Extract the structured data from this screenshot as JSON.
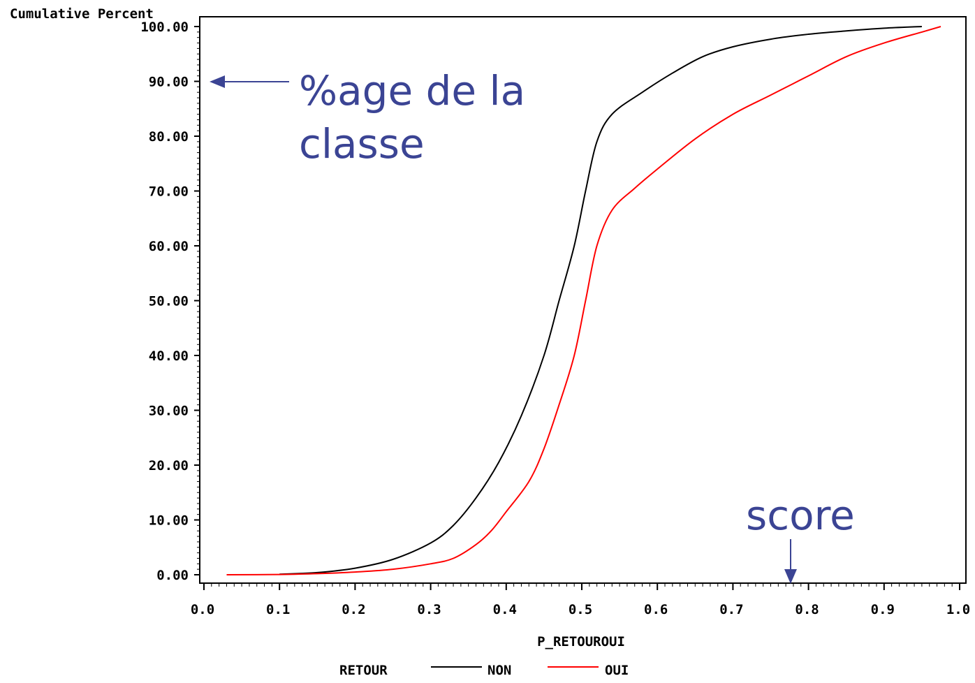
{
  "chart_data": {
    "type": "line",
    "title": "",
    "ylabel": "Cumulative Percent",
    "xlabel": "P_RETOUROUI",
    "xlim": [
      0.0,
      1.0
    ],
    "ylim": [
      0.0,
      100.0
    ],
    "x_ticks": [
      "0.0",
      "0.1",
      "0.2",
      "0.3",
      "0.4",
      "0.5",
      "0.6",
      "0.7",
      "0.8",
      "0.9",
      "1.0"
    ],
    "y_ticks": [
      "0.00",
      "10.00",
      "20.00",
      "30.00",
      "40.00",
      "50.00",
      "60.00",
      "70.00",
      "80.00",
      "90.00",
      "100.00"
    ],
    "grid": false,
    "legend": {
      "title": "RETOUR",
      "placement": "bottom"
    },
    "series": [
      {
        "name": "NON",
        "color": "#000000",
        "points": [
          [
            0.1,
            0.1
          ],
          [
            0.15,
            0.4
          ],
          [
            0.2,
            1.2
          ],
          [
            0.25,
            2.8
          ],
          [
            0.3,
            5.8
          ],
          [
            0.33,
            9.0
          ],
          [
            0.36,
            14.0
          ],
          [
            0.39,
            20.5
          ],
          [
            0.42,
            29.0
          ],
          [
            0.45,
            40.0
          ],
          [
            0.47,
            50.0
          ],
          [
            0.49,
            60.0
          ],
          [
            0.505,
            70.0
          ],
          [
            0.52,
            79.0
          ],
          [
            0.54,
            84.0
          ],
          [
            0.58,
            88.0
          ],
          [
            0.62,
            91.5
          ],
          [
            0.66,
            94.5
          ],
          [
            0.7,
            96.3
          ],
          [
            0.75,
            97.7
          ],
          [
            0.8,
            98.6
          ],
          [
            0.85,
            99.2
          ],
          [
            0.9,
            99.7
          ],
          [
            0.95,
            100.0
          ]
        ]
      },
      {
        "name": "OUI",
        "color": "#ff0000",
        "points": [
          [
            0.03,
            0.0
          ],
          [
            0.1,
            0.05
          ],
          [
            0.15,
            0.2
          ],
          [
            0.2,
            0.5
          ],
          [
            0.25,
            1.0
          ],
          [
            0.3,
            2.0
          ],
          [
            0.33,
            3.0
          ],
          [
            0.36,
            5.5
          ],
          [
            0.38,
            8.0
          ],
          [
            0.4,
            11.5
          ],
          [
            0.43,
            17.0
          ],
          [
            0.45,
            23.0
          ],
          [
            0.47,
            31.0
          ],
          [
            0.49,
            40.0
          ],
          [
            0.505,
            50.0
          ],
          [
            0.52,
            60.0
          ],
          [
            0.54,
            66.5
          ],
          [
            0.57,
            70.5
          ],
          [
            0.6,
            74.0
          ],
          [
            0.65,
            79.5
          ],
          [
            0.7,
            84.0
          ],
          [
            0.75,
            87.5
          ],
          [
            0.8,
            91.0
          ],
          [
            0.85,
            94.5
          ],
          [
            0.9,
            97.0
          ],
          [
            0.95,
            99.0
          ],
          [
            0.975,
            100.0
          ]
        ]
      }
    ],
    "annotations": [
      {
        "id": "class-pct",
        "lines": [
          "%age de la",
          "classe"
        ],
        "target": "y-axis"
      },
      {
        "id": "score",
        "lines": [
          "score"
        ],
        "target": "x-axis"
      }
    ]
  }
}
